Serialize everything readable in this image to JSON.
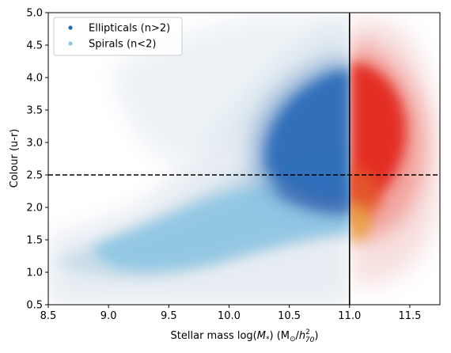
{
  "chart_data": {
    "type": "scatter",
    "xlabel_main": "Stellar mass log(",
    "xlabel_sym": "M",
    "xlabel_sub": "*",
    "xlabel_mid": ") (M",
    "xlabel_sun": "⊙",
    "xlabel_slash": "/",
    "xlabel_h": "h",
    "xlabel_pow": "2",
    "xlabel_h_sub": "70",
    "xlabel_close": ")",
    "ylabel": "Colour (u-r)",
    "xlim": [
      8.5,
      11.75
    ],
    "ylim": [
      0.5,
      5.0
    ],
    "xticks": [
      "8.5",
      "9.0",
      "9.5",
      "10.0",
      "10.5",
      "11.0",
      "11.5"
    ],
    "yticks": [
      "0.5",
      "1.0",
      "1.5",
      "2.0",
      "2.5",
      "3.0",
      "3.5",
      "4.0",
      "4.5",
      "5.0"
    ],
    "hline_y": 2.5,
    "vline_x": 11.0,
    "legend": [
      {
        "label": "Ellipticals (n>2)",
        "color": "#1f6db3"
      },
      {
        "label": "Spirals (n<2)",
        "color": "#8ec6e4"
      }
    ],
    "legend_position": "upper-left",
    "series": [
      {
        "name": "Ellipticals (n>2)",
        "color": "#2b6cb8",
        "region": "x<11.0",
        "center": [
          10.7,
          3.1
        ],
        "extent": [
          [
            10.2,
            11.0
          ],
          [
            2.0,
            4.3
          ]
        ]
      },
      {
        "name": "Spirals (n<2)",
        "color": "#8ec6e4",
        "region": "x<11.0",
        "center": [
          10.0,
          1.6
        ],
        "extent": [
          [
            8.9,
            11.0
          ],
          [
            1.1,
            2.4
          ]
        ]
      },
      {
        "color": "#e3281c",
        "region": "x>11.0",
        "center": [
          11.2,
          3.3
        ],
        "extent": [
          [
            11.0,
            11.5
          ],
          [
            2.2,
            4.1
          ]
        ]
      },
      {
        "color": "#e8a33a",
        "region": "x>11.0",
        "center": [
          11.1,
          1.9
        ],
        "extent": [
          [
            11.0,
            11.3
          ],
          [
            1.5,
            2.5
          ]
        ]
      }
    ]
  }
}
